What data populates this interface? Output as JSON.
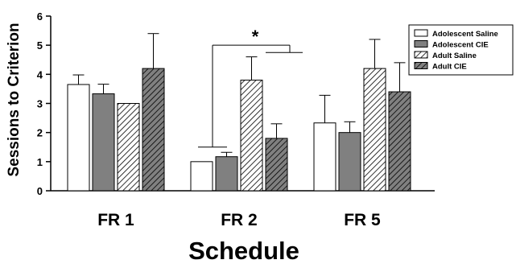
{
  "chart_data": {
    "type": "bar",
    "title": "",
    "xlabel": "Schedule",
    "ylabel": "Sessions to Criterion",
    "ylim": [
      0,
      6
    ],
    "yticks": [
      0,
      1,
      2,
      3,
      4,
      5,
      6
    ],
    "categories": [
      "FR 1",
      "FR 2",
      "FR 5"
    ],
    "series": [
      {
        "name": "Adolescent Saline",
        "values": [
          3.65,
          1.0,
          2.33
        ],
        "errors": [
          0.33,
          0.0,
          0.95
        ],
        "fill": "#ffffff",
        "pattern": "none"
      },
      {
        "name": "Adolescent CIE",
        "values": [
          3.33,
          1.17,
          2.0
        ],
        "errors": [
          0.33,
          0.15,
          0.37
        ],
        "fill": "#808080",
        "pattern": "none"
      },
      {
        "name": "Adult Saline",
        "values": [
          3.0,
          3.8,
          4.2
        ],
        "errors": [
          0.0,
          0.8,
          1.0
        ],
        "fill": "#ffffff",
        "pattern": "diagonal"
      },
      {
        "name": "Adult CIE",
        "values": [
          4.2,
          1.8,
          3.4
        ],
        "errors": [
          1.2,
          0.5,
          1.0
        ],
        "fill": "#808080",
        "pattern": "diagonal"
      }
    ],
    "legend_position": "top-right",
    "grid": false,
    "annotations": [
      {
        "text": "*"
      }
    ]
  }
}
